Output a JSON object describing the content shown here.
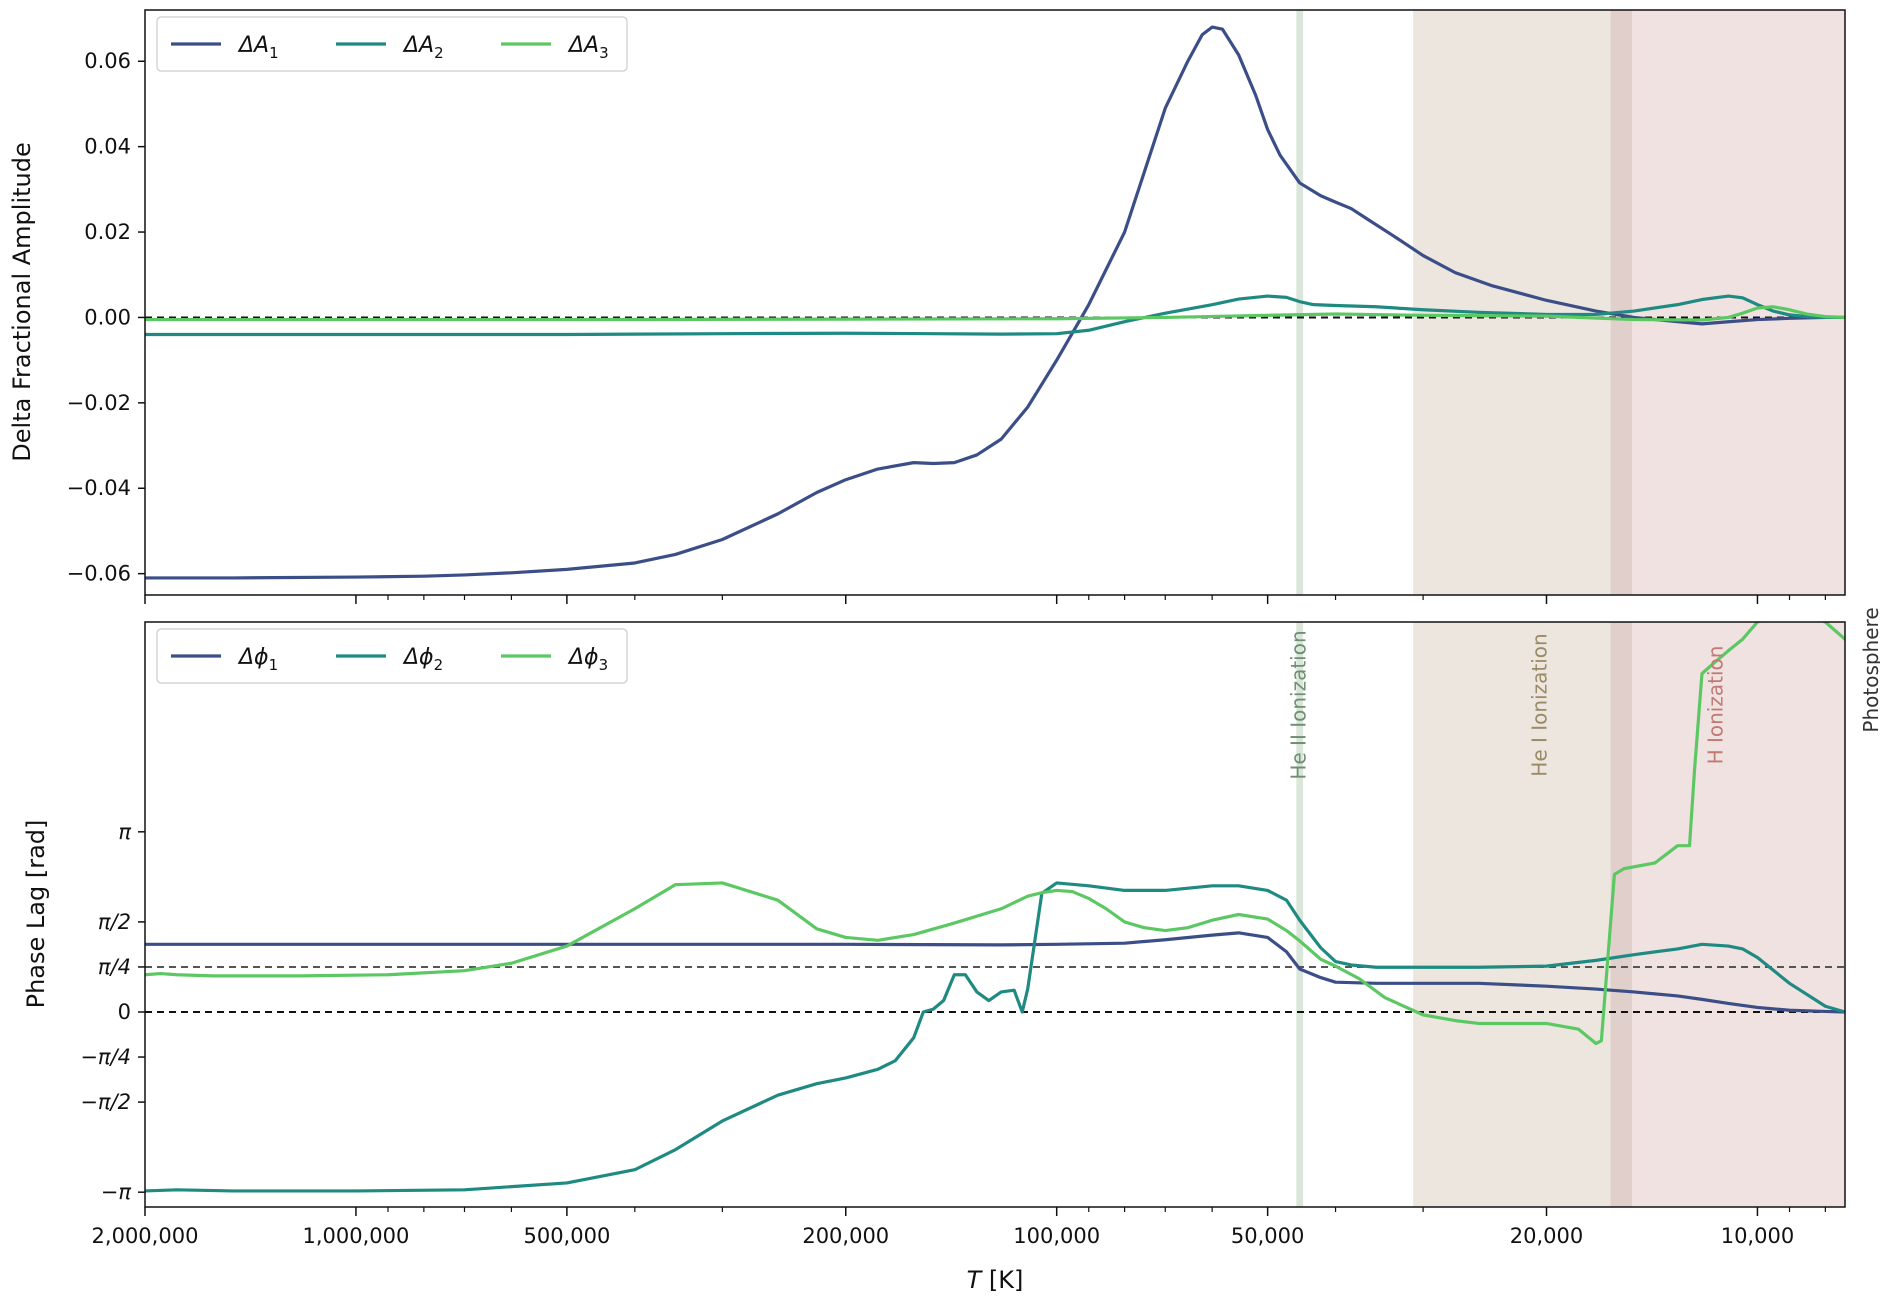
{
  "colors": {
    "dA1": "#3b4e87",
    "dA2": "#1f8a82",
    "dA3": "#5cc863",
    "he2_band": "#dbe6db",
    "he1_band": "#ece6df",
    "h_band": "#f0e2e1",
    "overlap_band": "#e0cfca",
    "he2_text": "#6e8f72",
    "he1_text": "#9a8a66",
    "h_text": "#c07a74",
    "photo_text": "#333333"
  },
  "chart_data": [
    {
      "type": "line",
      "x_scale": "log",
      "xlim": [
        2000000,
        7500
      ],
      "ylim": [
        -0.065,
        0.072
      ],
      "ylabel": "Delta Fractional Amplitude",
      "yticks": [
        -0.06,
        -0.04,
        -0.02,
        0.0,
        0.02,
        0.04,
        0.06
      ],
      "ytick_labels": [
        "−0.06",
        "−0.04",
        "−0.02",
        "0.00",
        "0.02",
        "0.04",
        "0.06"
      ],
      "hlines": [
        {
          "y": 0,
          "style": "dashed-black"
        }
      ],
      "legend": {
        "placement": "top-left"
      },
      "series": [
        {
          "name_base": "ΔA",
          "name_sub": "1",
          "color_key": "dA1",
          "x": [
            2000000,
            1500000,
            1000000,
            800000,
            700000,
            600000,
            500000,
            400000,
            350000,
            300000,
            250000,
            220000,
            200000,
            180000,
            160000,
            150000,
            140000,
            130000,
            120000,
            110000,
            100000,
            90000,
            80000,
            75000,
            70000,
            65000,
            62000,
            60000,
            58000,
            55000,
            52000,
            50000,
            48000,
            45000,
            42000,
            40000,
            38000,
            36000,
            33000,
            30000,
            27000,
            24000,
            20000,
            17000,
            15000,
            13000,
            12000,
            11000,
            10000,
            9000,
            8000,
            7500
          ],
          "y": [
            -0.061,
            -0.061,
            -0.0608,
            -0.0606,
            -0.0603,
            -0.0598,
            -0.059,
            -0.0575,
            -0.0555,
            -0.052,
            -0.046,
            -0.041,
            -0.038,
            -0.0355,
            -0.034,
            -0.0342,
            -0.034,
            -0.0322,
            -0.0285,
            -0.021,
            -0.01,
            0.003,
            0.02,
            0.034,
            0.049,
            0.06,
            0.0662,
            0.068,
            0.0675,
            0.0615,
            0.052,
            0.044,
            0.038,
            0.0315,
            0.0285,
            0.027,
            0.0255,
            0.023,
            0.019,
            0.0145,
            0.0105,
            0.0075,
            0.004,
            0.0015,
            0.0,
            -0.001,
            -0.0015,
            -0.001,
            -0.0005,
            -0.0002,
            0.0,
            0.0
          ]
        },
        {
          "name_base": "ΔA",
          "name_sub": "2",
          "color_key": "dA2",
          "x": [
            2000000,
            1000000,
            500000,
            300000,
            200000,
            150000,
            120000,
            100000,
            90000,
            80000,
            70000,
            60000,
            55000,
            50000,
            47000,
            45000,
            43000,
            40000,
            35000,
            30000,
            25000,
            20000,
            17000,
            15000,
            13000,
            12000,
            11000,
            10500,
            10000,
            9500,
            9000,
            8500,
            8000,
            7500
          ],
          "y": [
            -0.004,
            -0.004,
            -0.004,
            -0.0038,
            -0.0037,
            -0.0038,
            -0.0039,
            -0.0038,
            -0.003,
            -0.001,
            0.001,
            0.003,
            0.0043,
            0.005,
            0.0047,
            0.0037,
            0.003,
            0.0028,
            0.0025,
            0.0018,
            0.0012,
            0.0007,
            0.0007,
            0.0015,
            0.003,
            0.0042,
            0.005,
            0.0046,
            0.003,
            0.0015,
            0.0006,
            0.0002,
            0.0,
            0.0
          ]
        },
        {
          "name_base": "ΔA",
          "name_sub": "3",
          "color_key": "dA3",
          "x": [
            2000000,
            1000000,
            500000,
            200000,
            100000,
            70000,
            50000,
            40000,
            30000,
            20000,
            15000,
            12000,
            11000,
            10500,
            10000,
            9500,
            9000,
            8500,
            8000,
            7500
          ],
          "y": [
            -0.0005,
            -0.0005,
            -0.0005,
            -0.0004,
            -0.0003,
            0.0,
            0.0005,
            0.0008,
            0.0005,
            0.0003,
            -0.0005,
            -0.0006,
            0.0,
            0.001,
            0.0022,
            0.0025,
            0.0018,
            0.0008,
            0.0002,
            0.0
          ]
        }
      ]
    },
    {
      "type": "line",
      "x_scale": "log",
      "xlim": [
        2000000,
        7500
      ],
      "ylim": [
        -3.4,
        6.8
      ],
      "xlabel_base": "T",
      "xlabel_unit": " [K]",
      "ylabel": "Phase Lag [rad]",
      "yticks": [
        -3.14159,
        -1.5708,
        -0.7854,
        0,
        0.7854,
        1.5708,
        3.14159
      ],
      "ytick_labels": [
        "−π",
        "−π/2",
        "−π/4",
        "0",
        "π/4",
        "π/2",
        "π"
      ],
      "xticks": [
        2000000,
        1000000,
        500000,
        200000,
        100000,
        50000,
        20000,
        10000
      ],
      "xtick_labels": [
        "2,000,000",
        "1,000,000",
        "500,000",
        "200,000",
        "100,000",
        "50,000",
        "20,000",
        "10,000"
      ],
      "hlines": [
        {
          "y": 0,
          "style": "dashed-black"
        },
        {
          "y": 0.7854,
          "style": "dashed-gray"
        }
      ],
      "legend": {
        "placement": "top-left"
      },
      "regions": [
        {
          "label": "He II Ionization",
          "x0": 45500,
          "x1": 44500,
          "color_key": "he2_band",
          "text_key": "he2_text"
        },
        {
          "label": "He I Ionization",
          "x0": 31000,
          "x1": 15400,
          "color_key": "he1_band",
          "text_key": "he1_text"
        },
        {
          "label": "H Ionization",
          "x0": 15400,
          "x1": 7500,
          "color_key": "h_band",
          "text_key": "h_text"
        },
        {
          "label": "Photosphere",
          "x0": 7500,
          "x1": 7500,
          "color_key": "photo_band",
          "text_key": "photo_text"
        }
      ],
      "series": [
        {
          "name_base": "Δϕ",
          "name_sub": "1",
          "color_key": "dA1",
          "x": [
            2000000,
            1000000,
            500000,
            200000,
            120000,
            100000,
            80000,
            70000,
            60000,
            55000,
            50000,
            47000,
            45000,
            42000,
            40000,
            35000,
            30000,
            25000,
            20000,
            17000,
            15000,
            13000,
            12000,
            11000,
            10000,
            9000,
            8000,
            7500
          ],
          "y": [
            1.18,
            1.18,
            1.18,
            1.18,
            1.17,
            1.18,
            1.2,
            1.26,
            1.34,
            1.38,
            1.3,
            1.05,
            0.75,
            0.6,
            0.52,
            0.5,
            0.5,
            0.5,
            0.45,
            0.4,
            0.35,
            0.28,
            0.22,
            0.15,
            0.08,
            0.03,
            0.01,
            0.0
          ]
        },
        {
          "name_base": "Δϕ",
          "name_sub": "2",
          "color_key": "dA2",
          "x": [
            2000000,
            1800000,
            1500000,
            1000000,
            700000,
            500000,
            400000,
            350000,
            300000,
            250000,
            220000,
            200000,
            180000,
            170000,
            160000,
            155000,
            150000,
            145000,
            140000,
            135000,
            130000,
            125000,
            120000,
            115000,
            112000,
            110000,
            105000,
            100000,
            90000,
            80000,
            70000,
            60000,
            55000,
            50000,
            47000,
            45000,
            42000,
            40000,
            38000,
            35000,
            30000,
            25000,
            20000,
            17000,
            15000,
            13000,
            12000,
            11000,
            10500,
            10000,
            9000,
            8000,
            7500
          ],
          "y": [
            -3.12,
            -3.1,
            -3.12,
            -3.12,
            -3.1,
            -2.98,
            -2.75,
            -2.4,
            -1.9,
            -1.45,
            -1.25,
            -1.15,
            -1.0,
            -0.85,
            -0.45,
            0.0,
            0.05,
            0.2,
            0.65,
            0.65,
            0.35,
            0.2,
            0.35,
            0.38,
            0.0,
            0.4,
            2.07,
            2.25,
            2.2,
            2.12,
            2.12,
            2.2,
            2.2,
            2.12,
            1.95,
            1.6,
            1.12,
            0.88,
            0.82,
            0.78,
            0.78,
            0.78,
            0.8,
            0.9,
            1.0,
            1.1,
            1.18,
            1.15,
            1.1,
            0.95,
            0.5,
            0.1,
            0.0
          ]
        },
        {
          "name_base": "Δϕ",
          "name_sub": "3",
          "color_key": "dA3",
          "x": [
            2000000,
            1900000,
            1800000,
            1600000,
            1200000,
            900000,
            700000,
            600000,
            500000,
            400000,
            350000,
            300000,
            250000,
            220000,
            200000,
            180000,
            160000,
            140000,
            120000,
            110000,
            105000,
            100000,
            95000,
            90000,
            85000,
            80000,
            75000,
            70000,
            65000,
            60000,
            55000,
            50000,
            47000,
            45000,
            42000,
            40000,
            37000,
            34000,
            30000,
            27000,
            25000,
            22000,
            20000,
            18000,
            17000,
            16700,
            16000,
            15500,
            14000,
            13000,
            12500,
            12300,
            12000,
            11500,
            11000,
            10500,
            10000,
            9500,
            9000,
            8500,
            8000,
            7500
          ],
          "y": [
            0.65,
            0.67,
            0.65,
            0.63,
            0.63,
            0.65,
            0.72,
            0.85,
            1.15,
            1.8,
            2.22,
            2.25,
            1.95,
            1.45,
            1.3,
            1.25,
            1.35,
            1.55,
            1.8,
            2.02,
            2.08,
            2.12,
            2.1,
            1.98,
            1.8,
            1.57,
            1.47,
            1.42,
            1.47,
            1.6,
            1.7,
            1.62,
            1.42,
            1.24,
            0.92,
            0.8,
            0.58,
            0.25,
            -0.05,
            -0.15,
            -0.2,
            -0.2,
            -0.2,
            -0.3,
            -0.55,
            -0.5,
            2.4,
            2.5,
            2.6,
            2.9,
            2.9,
            4.2,
            5.9,
            6.1,
            6.3,
            6.5,
            6.8,
            6.9,
            6.95,
            6.9,
            6.8,
            6.5
          ]
        }
      ]
    }
  ]
}
